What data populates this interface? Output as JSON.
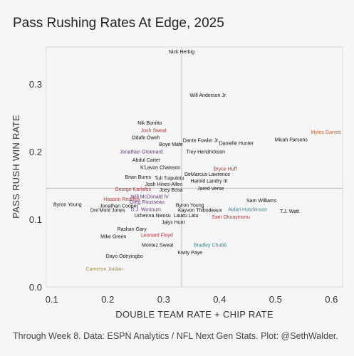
{
  "chart_data": {
    "type": "scatter",
    "title": "Pass Rushing Rates At Edge, 2025",
    "xlabel": "DOUBLE TEAM RATE + CHIP RATE",
    "ylabel": "PASS RUSH WIN RATE",
    "xlim": [
      0.09,
      0.62
    ],
    "ylim": [
      0.0,
      0.355
    ],
    "xticks": [
      0.1,
      0.2,
      0.3,
      0.4,
      0.5,
      0.6
    ],
    "yticks": [
      0.0,
      0.1,
      0.2,
      0.3
    ],
    "xtick_labels": [
      "0.1",
      "0.2",
      "0.3",
      "0.4",
      "0.5",
      "0.6"
    ],
    "ytick_labels": [
      "0.0",
      "0.1",
      "0.2",
      "0.3"
    ],
    "reference_lines": {
      "x": 0.332,
      "y": 0.146
    },
    "grid": false,
    "colors": {
      "default": "#111111",
      "orange": "#c8602a",
      "red": "#a8343a",
      "purple": "#5b3a78",
      "teal": "#2f8a8a",
      "gold": "#a08a52",
      "ref_line": "#bdbdbd"
    },
    "points": [
      {
        "name": "Nick Herbig",
        "x": 0.332,
        "y": 0.348,
        "color": "default"
      },
      {
        "name": "Will Anderson Jr.",
        "x": 0.38,
        "y": 0.284,
        "color": "default"
      },
      {
        "name": "Nik Bonitto",
        "x": 0.275,
        "y": 0.243,
        "color": "default"
      },
      {
        "name": "Josh Sweat",
        "x": 0.282,
        "y": 0.232,
        "color": "red"
      },
      {
        "name": "Odafe Oweh",
        "x": 0.268,
        "y": 0.221,
        "color": "default"
      },
      {
        "name": "Boye Mafe",
        "x": 0.313,
        "y": 0.211,
        "color": "default"
      },
      {
        "name": "Dante Fowler Jr.",
        "x": 0.367,
        "y": 0.217,
        "color": "default"
      },
      {
        "name": "Danielle Hunter",
        "x": 0.43,
        "y": 0.213,
        "color": "default"
      },
      {
        "name": "Micah Parsons",
        "x": 0.528,
        "y": 0.218,
        "color": "default"
      },
      {
        "name": "Myles Garrett",
        "x": 0.59,
        "y": 0.229,
        "color": "orange"
      },
      {
        "name": "Jonathan Greenard",
        "x": 0.26,
        "y": 0.2,
        "color": "purple"
      },
      {
        "name": "Trey Hendrickson",
        "x": 0.375,
        "y": 0.2,
        "color": "default"
      },
      {
        "name": "Abdul Carter",
        "x": 0.269,
        "y": 0.188,
        "color": "default"
      },
      {
        "name": "K'Lavon Chaisson",
        "x": 0.294,
        "y": 0.177,
        "color": "default"
      },
      {
        "name": "Bryce Huff",
        "x": 0.41,
        "y": 0.175,
        "color": "red"
      },
      {
        "name": "DeMarcus Lawrence",
        "x": 0.378,
        "y": 0.167,
        "color": "default"
      },
      {
        "name": "Brian Burns",
        "x": 0.254,
        "y": 0.163,
        "color": "default"
      },
      {
        "name": "Tuli Tuipulotu",
        "x": 0.31,
        "y": 0.161,
        "color": "default"
      },
      {
        "name": "Harold Landry III",
        "x": 0.381,
        "y": 0.157,
        "color": "default"
      },
      {
        "name": "Josh Hines-Allen",
        "x": 0.3,
        "y": 0.152,
        "color": "default"
      },
      {
        "name": "George Karlaftis",
        "x": 0.245,
        "y": 0.145,
        "color": "red"
      },
      {
        "name": "Joey Bosa",
        "x": 0.313,
        "y": 0.144,
        "color": "default"
      },
      {
        "name": "Jared Verse",
        "x": 0.384,
        "y": 0.146,
        "color": "default"
      },
      {
        "name": "Will McDonald IV",
        "x": 0.275,
        "y": 0.134,
        "color": "purple"
      },
      {
        "name": "Haason Reddick",
        "x": 0.225,
        "y": 0.13,
        "color": "red"
      },
      {
        "name": "Greg Rousseau",
        "x": 0.27,
        "y": 0.126,
        "color": "purple"
      },
      {
        "name": "Sam Williams",
        "x": 0.475,
        "y": 0.128,
        "color": "default"
      },
      {
        "name": "Byron Young",
        "x": 0.128,
        "y": 0.122,
        "color": "default"
      },
      {
        "name": "Jonathan Cooper",
        "x": 0.22,
        "y": 0.12,
        "color": "default"
      },
      {
        "name": "Byron Young",
        "x": 0.347,
        "y": 0.121,
        "color": "default"
      },
      {
        "name": "D.J. Wonnum",
        "x": 0.268,
        "y": 0.115,
        "color": "purple"
      },
      {
        "name": "Dre'Mont Jones",
        "x": 0.2,
        "y": 0.114,
        "color": "default"
      },
      {
        "name": "Kayvon Thibodeaux",
        "x": 0.365,
        "y": 0.114,
        "color": "default"
      },
      {
        "name": "Aidan Hutchinson",
        "x": 0.45,
        "y": 0.115,
        "color": "teal"
      },
      {
        "name": "T.J. Watt",
        "x": 0.525,
        "y": 0.112,
        "color": "default"
      },
      {
        "name": "Uchenna Nwosu",
        "x": 0.28,
        "y": 0.106,
        "color": "default"
      },
      {
        "name": "Laiatu Latu",
        "x": 0.34,
        "y": 0.106,
        "color": "default"
      },
      {
        "name": "Sam Okuayinonu",
        "x": 0.42,
        "y": 0.104,
        "color": "red"
      },
      {
        "name": "Jalyx Hunt",
        "x": 0.317,
        "y": 0.096,
        "color": "default"
      },
      {
        "name": "Rashan Gary",
        "x": 0.243,
        "y": 0.086,
        "color": "default"
      },
      {
        "name": "Mike Green",
        "x": 0.21,
        "y": 0.075,
        "color": "default"
      },
      {
        "name": "Leonard Floyd",
        "x": 0.288,
        "y": 0.077,
        "color": "red"
      },
      {
        "name": "Montez Sweat",
        "x": 0.289,
        "y": 0.062,
        "color": "default"
      },
      {
        "name": "Bradley Chubb",
        "x": 0.383,
        "y": 0.062,
        "color": "teal"
      },
      {
        "name": "Kwity Paye",
        "x": 0.347,
        "y": 0.051,
        "color": "default"
      },
      {
        "name": "Dayo Odeyingbo",
        "x": 0.23,
        "y": 0.046,
        "color": "default"
      },
      {
        "name": "Cameron Jordan",
        "x": 0.194,
        "y": 0.027,
        "color": "gold"
      }
    ]
  },
  "footer": "Through Week 8. Data: ESPN Analytics / NFL Next Gen Stats. Plot: @SethWalder."
}
